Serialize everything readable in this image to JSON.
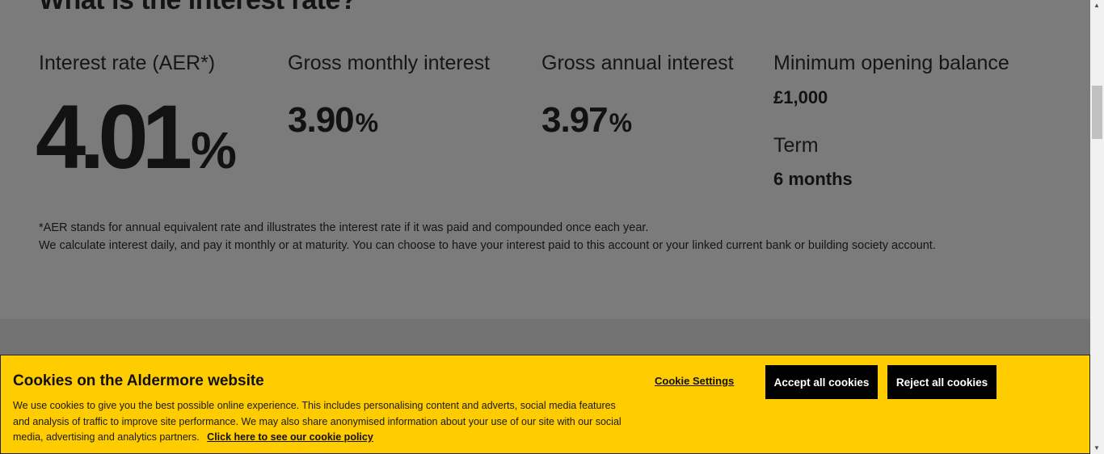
{
  "section": {
    "heading": "What is the interest rate?"
  },
  "rates": {
    "aer": {
      "label": "Interest rate (AER*)",
      "value": "4.01",
      "unit": "%"
    },
    "gross_monthly": {
      "label": "Gross monthly interest",
      "value": "3.90",
      "unit": "%"
    },
    "gross_annual": {
      "label": "Gross annual interest",
      "value": "3.97",
      "unit": "%"
    },
    "min_balance": {
      "label": "Minimum opening balance",
      "value": "£1,000"
    },
    "term": {
      "label": "Term",
      "value": "6 months"
    }
  },
  "notes": {
    "line1": "*AER stands for annual equivalent rate and illustrates the interest rate if it was paid and compounded once each year.",
    "line2": "We calculate interest daily, and pay it monthly or at maturity. You can choose to have your interest paid to this account or your linked current bank or building society account."
  },
  "cookie_banner": {
    "title": "Cookies on the Aldermore website",
    "body": "We use cookies to give you the best possible online experience. This includes personalising content and adverts, social media features and analysis of traffic to improve site performance. We may also share anonymised information about your use of our site with our social media, advertising and analytics partners.",
    "policy_link": "Click here to see our cookie policy",
    "settings_label": "Cookie Settings",
    "accept_label": "Accept all cookies",
    "reject_label": "Reject all cookies"
  },
  "colors": {
    "banner_bg": "#ffcc00",
    "button_bg": "#000000",
    "overlay_bg": "#7b7b7b"
  },
  "icons": {
    "scroll_up": "chevron-up-icon",
    "scroll_down": "chevron-down-icon"
  }
}
